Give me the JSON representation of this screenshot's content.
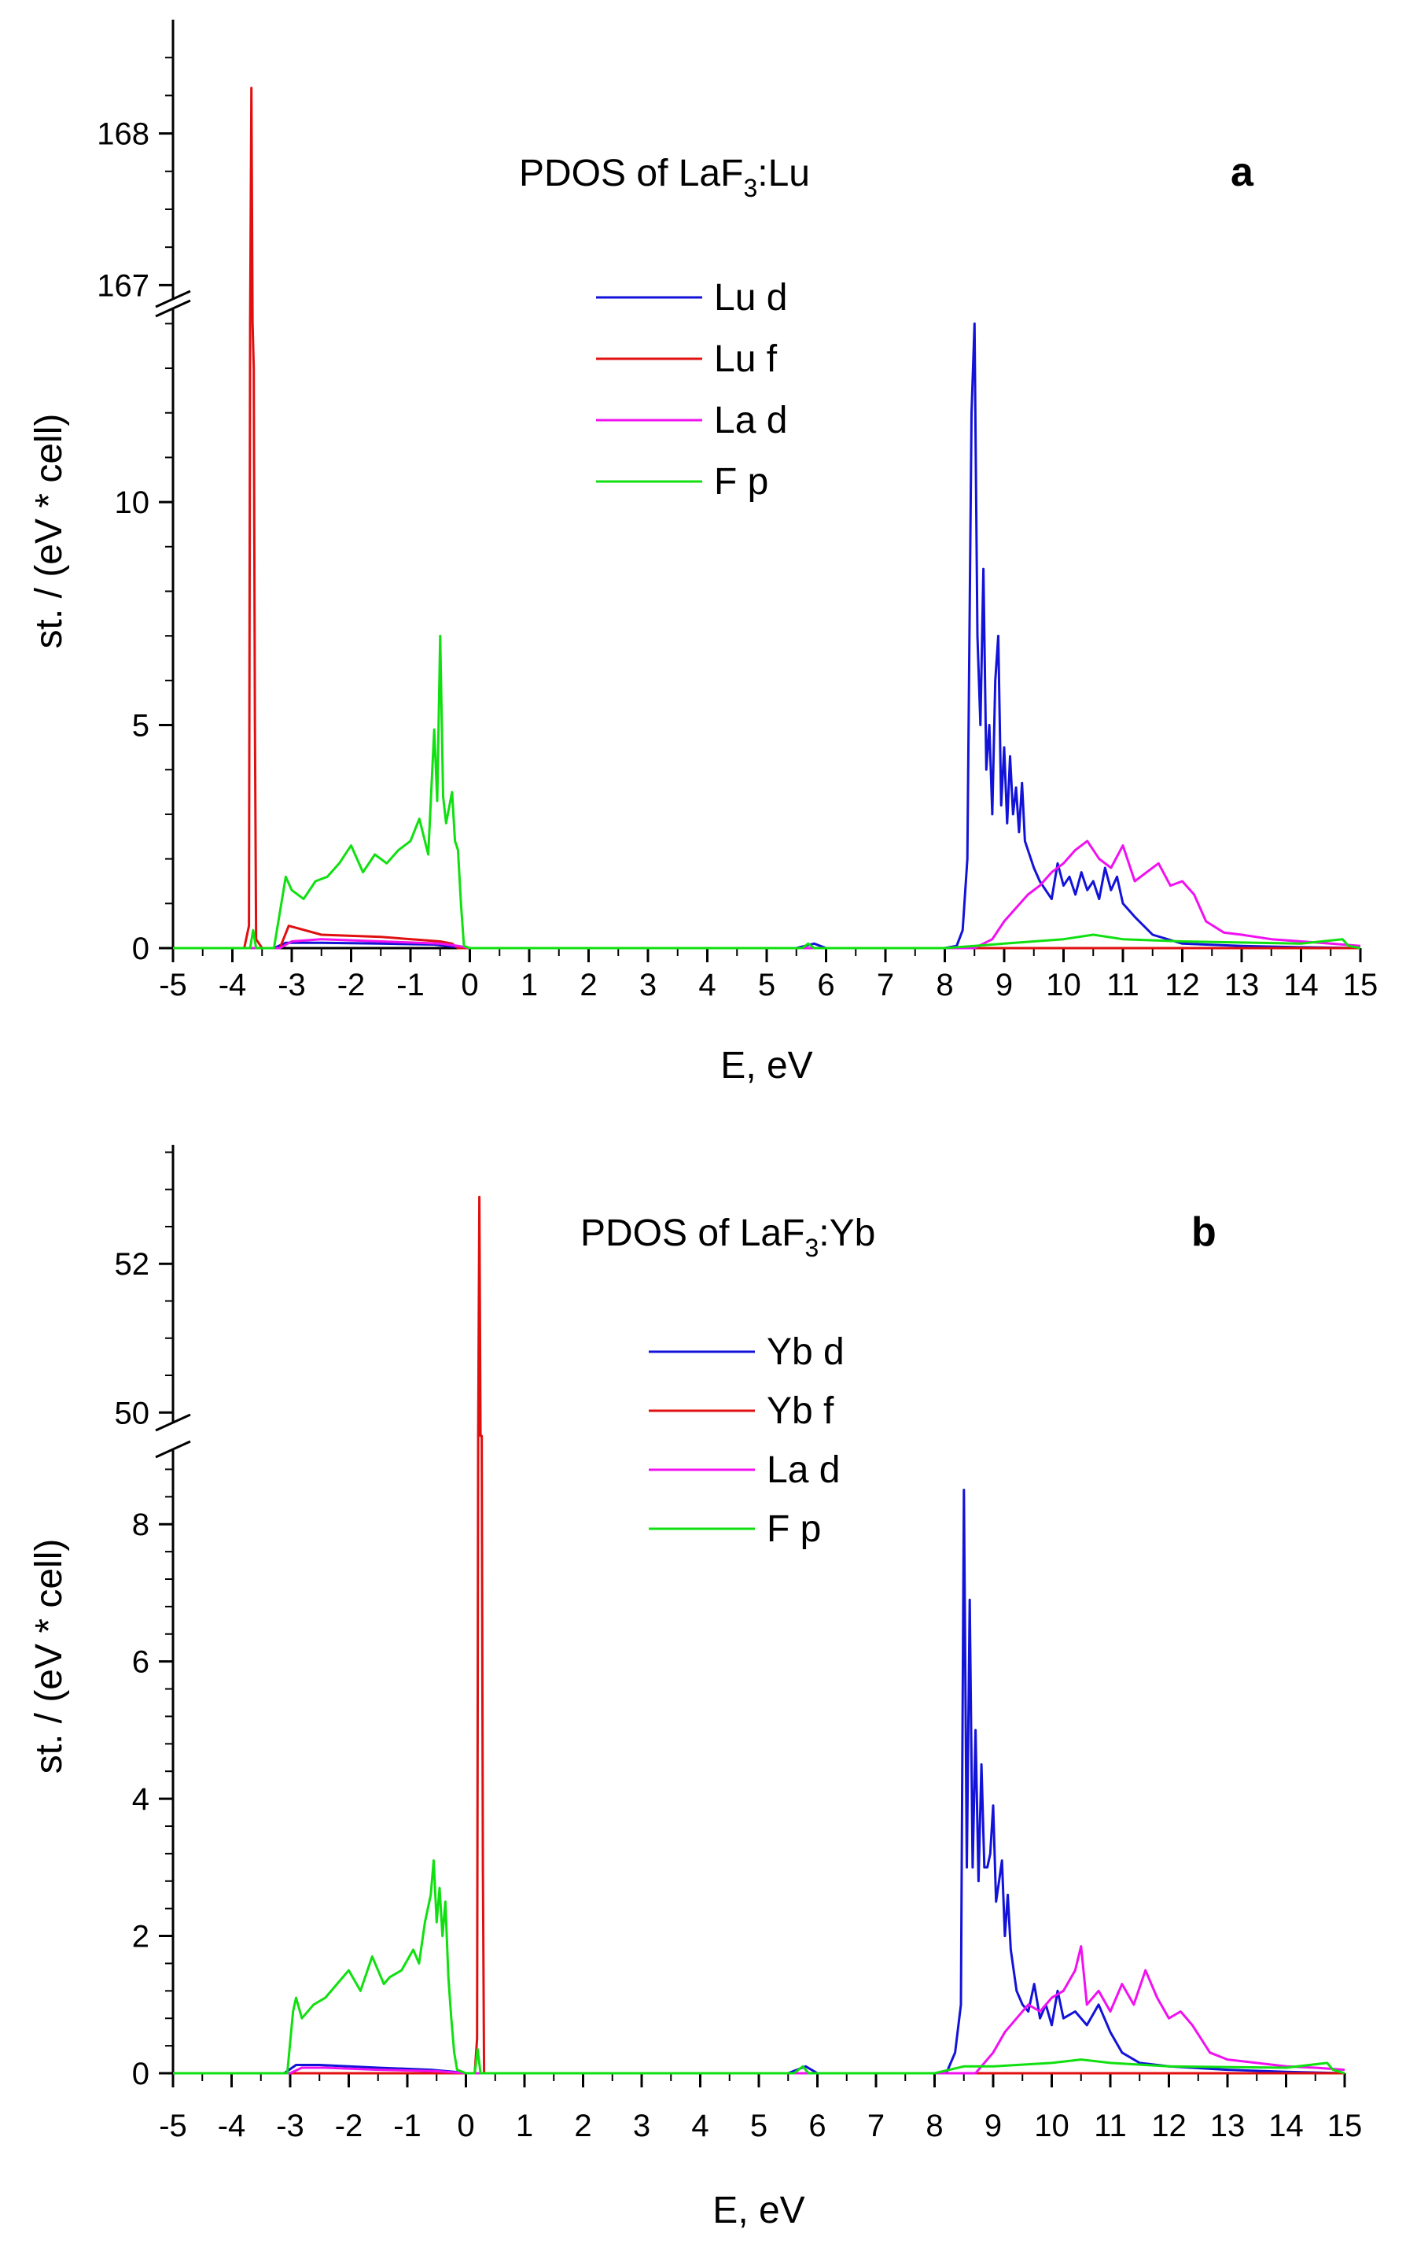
{
  "panels": [
    {
      "letter": "a",
      "title_main": "PDOS of LaF",
      "title_sub": "3",
      "title_tail": ":Lu",
      "xlabel": "E, eV",
      "ylabel": "st. / (eV * cell)",
      "xlim": [
        -5,
        15
      ],
      "xticks": [
        -5,
        -4,
        -3,
        -2,
        -1,
        0,
        1,
        2,
        3,
        4,
        5,
        6,
        7,
        8,
        9,
        10,
        11,
        12,
        13,
        14,
        15
      ],
      "lower_ylim": [
        0,
        14.2
      ],
      "lower_yticks": [
        0,
        5,
        10
      ],
      "upper_ylim": [
        166.95,
        168.75
      ],
      "upper_yticks": [
        167,
        168
      ],
      "legend": [
        {
          "label": "Lu d",
          "color": "#1212d8"
        },
        {
          "label": "Lu f",
          "color": "#e01010"
        },
        {
          "label": "La d",
          "color": "#f010f0"
        },
        {
          "label": "F p",
          "color": "#10e010"
        }
      ]
    },
    {
      "letter": "b",
      "title_main": "PDOS of LaF",
      "title_sub": "3",
      "title_tail": ":Yb",
      "xlabel": "E, eV",
      "ylabel": "st. / (eV * cell)",
      "xlim": [
        -5,
        15
      ],
      "xticks": [
        -5,
        -4,
        -3,
        -2,
        -1,
        0,
        1,
        2,
        3,
        4,
        5,
        6,
        7,
        8,
        9,
        10,
        11,
        12,
        13,
        14,
        15
      ],
      "lower_ylim": [
        0,
        9
      ],
      "lower_yticks": [
        0,
        2,
        4,
        6,
        8
      ],
      "upper_ylim": [
        49.95,
        53.6
      ],
      "upper_yticks": [
        50,
        52
      ],
      "legend": [
        {
          "label": "Yb d",
          "color": "#1212d8"
        },
        {
          "label": "Yb f",
          "color": "#e01010"
        },
        {
          "label": "La d",
          "color": "#f010f0"
        },
        {
          "label": "F p",
          "color": "#10e010"
        }
      ]
    }
  ],
  "chart_data": [
    {
      "type": "line",
      "title": "PDOS of LaF3:Lu",
      "xlabel": "E, eV",
      "ylabel": "st. / (eV * cell)",
      "xlim": [
        -5,
        15
      ],
      "ylim_lower": [
        0,
        14.2
      ],
      "ylim_upper": [
        166.95,
        168.75
      ],
      "series": [
        {
          "name": "Lu d",
          "color": "#1212d8",
          "x": [
            -5,
            -3.3,
            -3.1,
            -2.5,
            -1.5,
            -0.6,
            -0.2,
            0,
            5.5,
            5.8,
            6,
            8,
            8.2,
            8.3,
            8.38,
            8.45,
            8.5,
            8.55,
            8.6,
            8.65,
            8.7,
            8.75,
            8.8,
            8.85,
            8.9,
            8.95,
            9.0,
            9.05,
            9.1,
            9.15,
            9.2,
            9.25,
            9.3,
            9.35,
            9.4,
            9.5,
            9.6,
            9.7,
            9.8,
            9.9,
            10.0,
            10.1,
            10.2,
            10.3,
            10.4,
            10.5,
            10.6,
            10.7,
            10.8,
            10.9,
            11.0,
            11.2,
            11.5,
            12,
            13,
            14,
            15
          ],
          "y": [
            0,
            0,
            0.12,
            0.12,
            0.1,
            0.08,
            0.02,
            0,
            0,
            0.1,
            0,
            0,
            0.05,
            0.4,
            2,
            12,
            14,
            7,
            5,
            8.5,
            4,
            5,
            3,
            6,
            7,
            3.2,
            4.5,
            2.8,
            4.3,
            3.0,
            3.6,
            2.6,
            3.7,
            2.4,
            2.2,
            1.8,
            1.5,
            1.3,
            1.1,
            1.9,
            1.4,
            1.6,
            1.2,
            1.7,
            1.3,
            1.5,
            1.1,
            1.8,
            1.3,
            1.6,
            1.0,
            0.7,
            0.3,
            0.1,
            0.05,
            0.02,
            0
          ]
        },
        {
          "name": "Lu f",
          "color": "#e01010",
          "x": [
            -5,
            -3.8,
            -3.72,
            -3.7,
            -3.68,
            -3.66,
            -3.64,
            -3.62,
            -3.6,
            -3.5,
            -3.2,
            -3.05,
            -2.5,
            -1.5,
            -0.5,
            -0.3,
            -0.2,
            15
          ],
          "y": [
            0,
            0,
            0.5,
            14,
            168.3,
            14,
            13,
            5,
            0.2,
            0,
            0,
            0.5,
            0.3,
            0.25,
            0.15,
            0.1,
            0,
            0
          ]
        },
        {
          "name": "La d",
          "color": "#f010f0",
          "x": [
            -5,
            -3.2,
            -3,
            -2.5,
            -1.5,
            -0.5,
            -0.2,
            0,
            8.5,
            8.8,
            9,
            9.2,
            9.4,
            9.6,
            9.8,
            10,
            10.2,
            10.4,
            10.6,
            10.8,
            11,
            11.2,
            11.4,
            11.6,
            11.8,
            12,
            12.2,
            12.4,
            12.7,
            13,
            13.5,
            14,
            14.5,
            15
          ],
          "y": [
            0,
            0,
            0.15,
            0.2,
            0.15,
            0.1,
            0.05,
            0,
            0,
            0.2,
            0.6,
            0.9,
            1.2,
            1.4,
            1.7,
            1.9,
            2.2,
            2.4,
            2.0,
            1.8,
            2.3,
            1.5,
            1.7,
            1.9,
            1.4,
            1.5,
            1.2,
            0.6,
            0.35,
            0.3,
            0.2,
            0.15,
            0.1,
            0.05
          ]
        },
        {
          "name": "F p",
          "color": "#10e010",
          "x": [
            -5,
            -3.7,
            -3.65,
            -3.6,
            -3.3,
            -3.1,
            -3.0,
            -2.8,
            -2.6,
            -2.4,
            -2.2,
            -2.0,
            -1.8,
            -1.6,
            -1.4,
            -1.2,
            -1.0,
            -0.85,
            -0.7,
            -0.6,
            -0.55,
            -0.5,
            -0.45,
            -0.4,
            -0.3,
            -0.25,
            -0.2,
            -0.15,
            -0.1,
            0,
            5.6,
            5.7,
            5.8,
            8,
            8.5,
            9,
            10,
            10.5,
            11,
            12,
            14,
            14.7,
            14.8,
            15
          ],
          "y": [
            0,
            0,
            0.4,
            0,
            0,
            1.6,
            1.3,
            1.1,
            1.5,
            1.6,
            1.9,
            2.3,
            1.7,
            2.1,
            1.9,
            2.2,
            2.4,
            2.9,
            2.1,
            4.9,
            3.3,
            7.0,
            3.4,
            2.8,
            3.5,
            2.4,
            2.2,
            1.0,
            0.05,
            0,
            0,
            0.1,
            0,
            0,
            0.05,
            0.1,
            0.2,
            0.3,
            0.2,
            0.15,
            0.1,
            0.2,
            0.05,
            0
          ]
        }
      ]
    },
    {
      "type": "line",
      "title": "PDOS of LaF3:Yb",
      "xlabel": "E, eV",
      "ylabel": "st. / (eV * cell)",
      "xlim": [
        -5,
        15
      ],
      "ylim_lower": [
        0,
        9
      ],
      "ylim_upper": [
        49.95,
        53.6
      ],
      "series": [
        {
          "name": "Yb d",
          "color": "#1212d8",
          "x": [
            -5,
            -3.1,
            -2.9,
            -2.5,
            -1.5,
            -0.6,
            -0.2,
            0,
            5.5,
            5.8,
            6,
            8.2,
            8.35,
            8.45,
            8.5,
            8.55,
            8.6,
            8.65,
            8.7,
            8.75,
            8.8,
            8.85,
            8.9,
            8.95,
            9.0,
            9.05,
            9.1,
            9.15,
            9.2,
            9.25,
            9.3,
            9.35,
            9.4,
            9.5,
            9.6,
            9.7,
            9.8,
            9.9,
            10.0,
            10.1,
            10.2,
            10.4,
            10.6,
            10.8,
            11.0,
            11.2,
            11.5,
            12,
            13,
            14,
            15
          ],
          "y": [
            0,
            0,
            0.12,
            0.12,
            0.08,
            0.05,
            0.02,
            0,
            0,
            0.1,
            0,
            0,
            0.3,
            1,
            8.5,
            3,
            6.9,
            3,
            5,
            2.8,
            4.5,
            3,
            3,
            3.2,
            3.9,
            2.5,
            2.8,
            3.1,
            2.0,
            2.6,
            1.8,
            1.5,
            1.2,
            1.0,
            0.9,
            1.3,
            0.8,
            1.0,
            0.7,
            1.2,
            0.8,
            0.9,
            0.7,
            1.0,
            0.6,
            0.3,
            0.15,
            0.1,
            0.05,
            0.02,
            0
          ]
        },
        {
          "name": "Yb f",
          "color": "#e01010",
          "x": [
            -5,
            0.15,
            0.19,
            0.21,
            0.23,
            0.25,
            0.27,
            0.29,
            0.31,
            0.4,
            15
          ],
          "y": [
            0,
            0,
            0.5,
            9.2,
            52.9,
            9.2,
            9.2,
            3,
            0,
            0,
            0
          ]
        },
        {
          "name": "La d",
          "color": "#f010f0",
          "x": [
            -5,
            -3,
            -2.8,
            -2.4,
            -1.5,
            -0.5,
            0,
            8.7,
            9.0,
            9.2,
            9.4,
            9.6,
            9.8,
            10,
            10.2,
            10.4,
            10.5,
            10.6,
            10.8,
            11,
            11.2,
            11.4,
            11.6,
            11.8,
            12,
            12.2,
            12.4,
            12.7,
            13,
            13.5,
            14,
            14.5,
            15
          ],
          "y": [
            0,
            0,
            0.08,
            0.08,
            0.05,
            0.03,
            0,
            0,
            0.3,
            0.6,
            0.8,
            1.0,
            0.9,
            1.1,
            1.2,
            1.5,
            1.85,
            1.0,
            1.2,
            0.9,
            1.3,
            1.0,
            1.5,
            1.1,
            0.8,
            0.9,
            0.7,
            0.3,
            0.2,
            0.15,
            0.1,
            0.08,
            0.05
          ]
        },
        {
          "name": "F p",
          "color": "#10e010",
          "x": [
            -5,
            -3.05,
            -2.95,
            -2.9,
            -2.8,
            -2.6,
            -2.4,
            -2.2,
            -2.0,
            -1.8,
            -1.6,
            -1.4,
            -1.3,
            -1.1,
            -0.9,
            -0.8,
            -0.7,
            -0.6,
            -0.55,
            -0.5,
            -0.45,
            -0.4,
            -0.35,
            -0.3,
            -0.25,
            -0.2,
            -0.15,
            0,
            0.15,
            0.2,
            0.25,
            5.6,
            5.75,
            5.85,
            8,
            8.5,
            9,
            10,
            10.5,
            11,
            12,
            14,
            14.7,
            14.8,
            15
          ],
          "y": [
            0,
            0,
            0.9,
            1.1,
            0.8,
            1.0,
            1.1,
            1.3,
            1.5,
            1.2,
            1.7,
            1.3,
            1.4,
            1.5,
            1.8,
            1.6,
            2.2,
            2.6,
            3.1,
            2.2,
            2.7,
            2.0,
            2.5,
            1.4,
            0.8,
            0.3,
            0.05,
            0,
            0,
            0.35,
            0,
            0,
            0.1,
            0,
            0,
            0.1,
            0.1,
            0.15,
            0.2,
            0.15,
            0.1,
            0.08,
            0.15,
            0.05,
            0
          ]
        }
      ]
    }
  ]
}
